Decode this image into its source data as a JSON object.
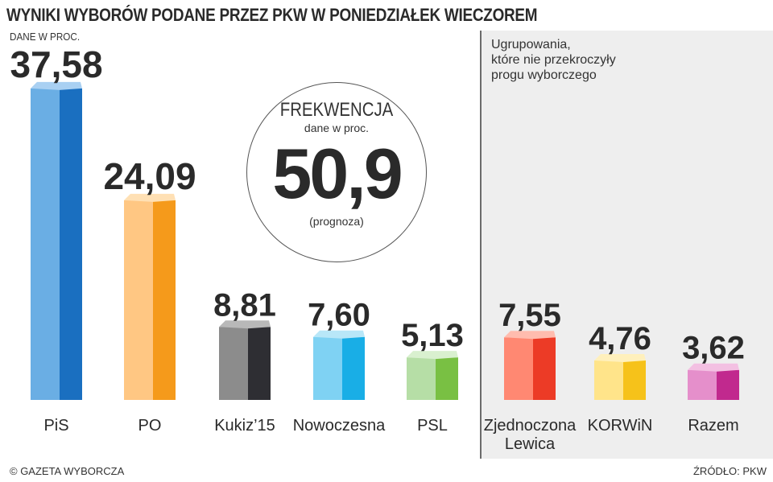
{
  "header": {
    "title": "WYNIKI WYBORÓW PODANE PRZEZ PKW W PONIEDZIAŁEK WIECZOREM",
    "subtitle": "DANE W PROC."
  },
  "turnout": {
    "label": "FREKWENCJA",
    "unit": "dane w proc.",
    "value": "50,9",
    "note": "(prognoza)"
  },
  "panel": {
    "lines": [
      "Ugrupowania,",
      "które nie przekroczyły",
      "progu wyborczego"
    ]
  },
  "footer": {
    "copyright": "© GAZETA WYBORCZA",
    "source": "ŹRÓDŁO: PKW"
  },
  "chart_data": {
    "type": "bar",
    "ylabel": "",
    "xlabel": "",
    "categories": [
      "PiS",
      "PO",
      "Kukiz'15",
      "Nowoczesna",
      "PSL",
      "Zjednoczona Lewica",
      "KORWiN",
      "Razem"
    ],
    "category_lines": [
      [
        "PiS"
      ],
      [
        "PO"
      ],
      [
        "Kukiz’15"
      ],
      [
        "Nowoczesna"
      ],
      [
        "PSL"
      ],
      [
        "Zjednoczona",
        "Lewica"
      ],
      [
        "KORWiN"
      ],
      [
        "Razem"
      ]
    ],
    "values": [
      37.58,
      24.09,
      8.81,
      7.6,
      5.13,
      7.55,
      4.76,
      3.62
    ],
    "value_labels": [
      "37,58",
      "24,09",
      "8,81",
      "7,60",
      "5,13",
      "7,55",
      "4,76",
      "3,62"
    ],
    "colors": [
      {
        "front": "#6aaee4",
        "side": "#1a6fc0",
        "top": "#a9d0f2"
      },
      {
        "front": "#ffc783",
        "side": "#f59a1b",
        "top": "#ffe0b4"
      },
      {
        "front": "#8c8c8c",
        "side": "#2e2e33",
        "top": "#b8b8b8"
      },
      {
        "front": "#7fd2f3",
        "side": "#19aee6",
        "top": "#b8e7f8"
      },
      {
        "front": "#b6dea6",
        "side": "#79c043",
        "top": "#d9f0cf"
      },
      {
        "front": "#ff8872",
        "side": "#ec3b26",
        "top": "#ffbcae"
      },
      {
        "front": "#ffe48a",
        "side": "#f6c21a",
        "top": "#fff0bc"
      },
      {
        "front": "#e58fcb",
        "side": "#c1298e",
        "top": "#f3c0e2"
      }
    ],
    "below_threshold_from_index": 5,
    "grid": false
  }
}
